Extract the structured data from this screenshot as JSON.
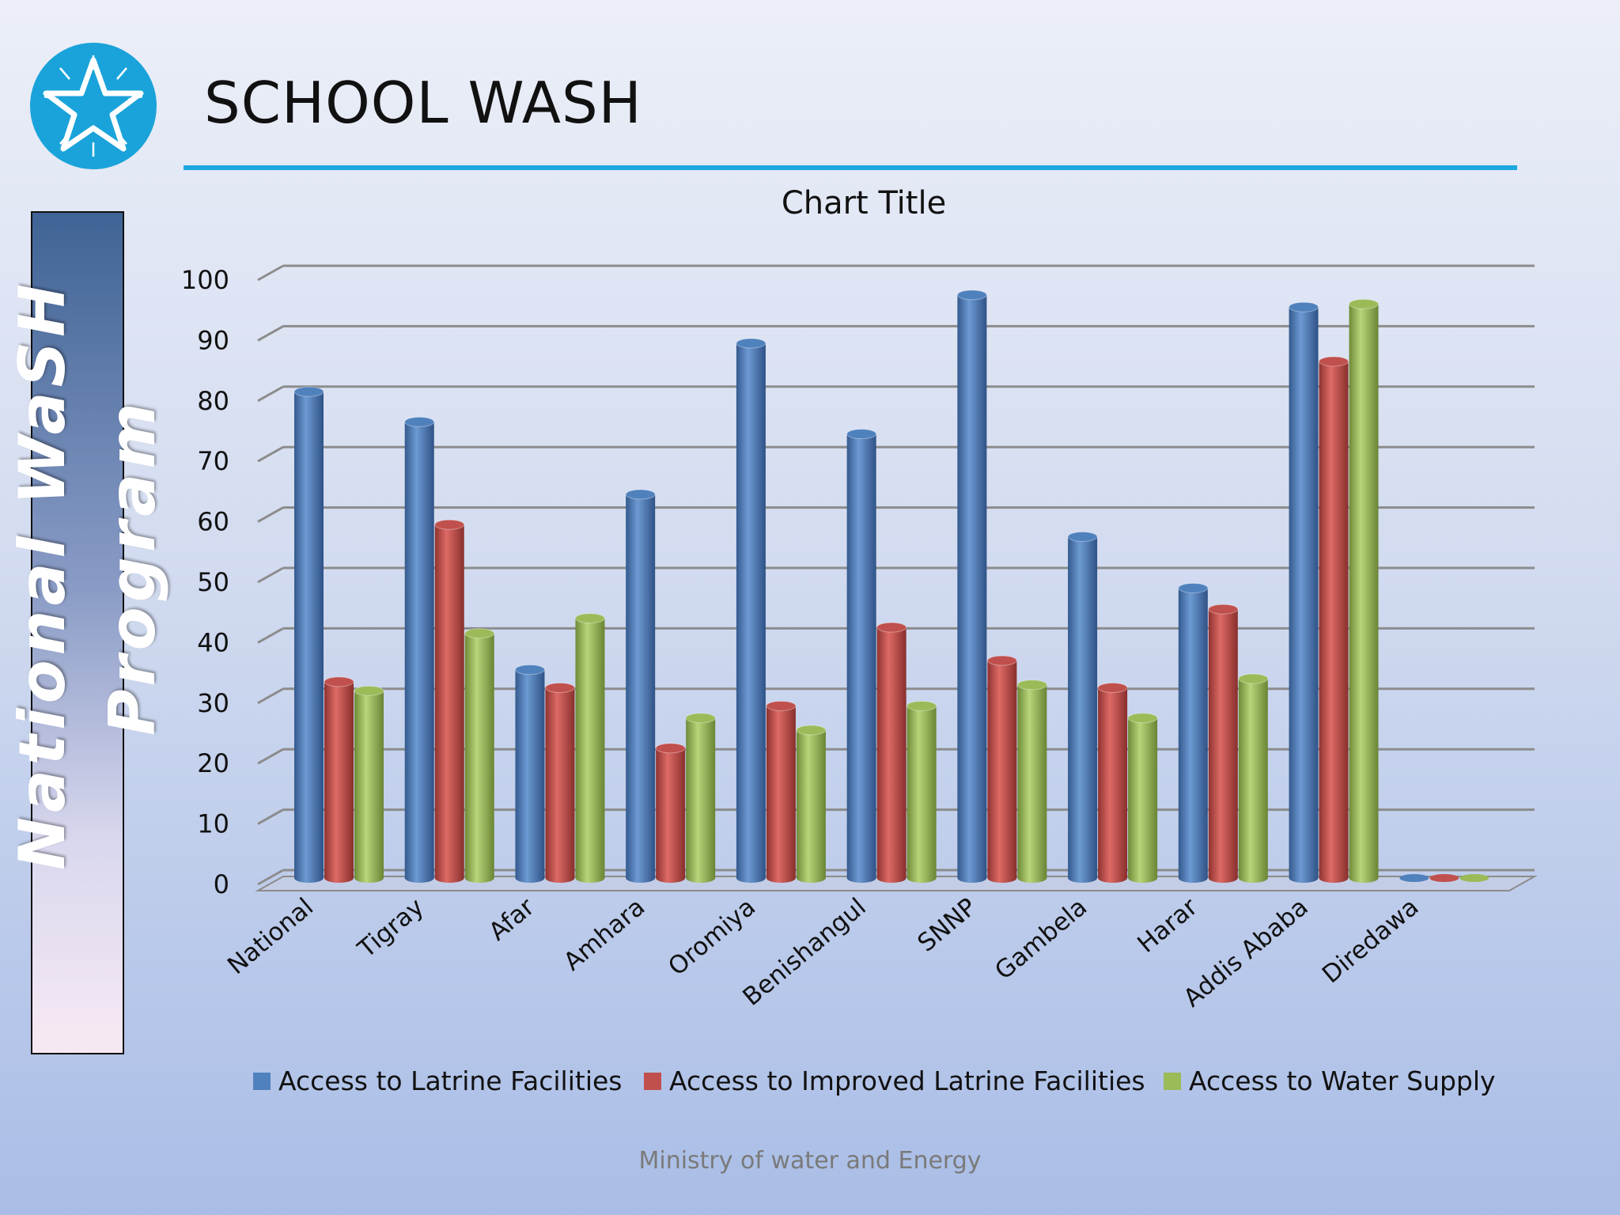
{
  "slide": {
    "title": "SCHOOL WASH",
    "side_title_line1": "National WaSH",
    "side_title_line2": "Program",
    "footer": "Ministry of water and Energy"
  },
  "icons": {
    "logo": "star-emblem-icon"
  },
  "colors": {
    "accent_rule": "#1ba7e0",
    "logo": "#1aa3da",
    "series": [
      "#4f81bd",
      "#c0504d",
      "#9bbb59"
    ]
  },
  "chart_data": {
    "type": "bar",
    "title": "Chart Title",
    "categories": [
      "National",
      "Tigray",
      "Afar",
      "Amhara",
      "Oromiya",
      "Benishangul",
      "SNNP",
      "Gambela",
      "Harar",
      "Addis Ababa",
      "Diredawa"
    ],
    "series": [
      {
        "name": "Access to Latrine Facilities",
        "values": [
          81,
          76,
          35,
          64,
          89,
          74,
          97,
          57,
          48.5,
          95,
          0
        ]
      },
      {
        "name": "Access to Improved Latrine Facilities",
        "values": [
          33,
          59,
          32,
          22,
          29,
          42,
          36.5,
          32,
          45,
          86,
          0
        ]
      },
      {
        "name": "Access to Water Supply",
        "values": [
          31.5,
          41,
          43.5,
          27,
          25,
          29,
          32.5,
          27,
          33.5,
          95.5,
          0
        ]
      }
    ],
    "yticks": [
      "0",
      "10",
      "20",
      "30",
      "40",
      "50",
      "60",
      "70",
      "80",
      "90",
      "100"
    ],
    "ylim": [
      0,
      100
    ],
    "grid": true,
    "legend_position": "bottom",
    "style": "3d-cylinder"
  }
}
